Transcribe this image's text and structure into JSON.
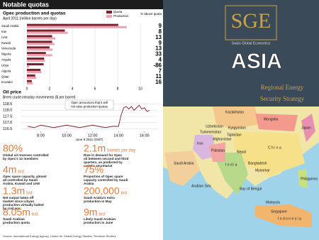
{
  "header": {
    "title": "Notable quotas"
  },
  "chart_data": [
    {
      "type": "bar",
      "orientation": "horizontal",
      "title": "Opec production and quotas",
      "subtitle": "April 2011 (million barrels per day)",
      "categories": [
        "Saudi Arabia",
        "Iran",
        "UAE",
        "Kuwait",
        "Venezuela",
        "Nigeria",
        "Angola",
        "Libya",
        "Algeria",
        "Qatar",
        "Ecuador"
      ],
      "series": [
        {
          "name": "Quota",
          "color": "#7d1f2c",
          "values": [
            8.05,
            3.34,
            2.22,
            2.22,
            1.99,
            1.67,
            1.52,
            1.47,
            1.2,
            0.73,
            0.43
          ]
        },
        {
          "name": "Production",
          "color": "#e9a3b3",
          "values": [
            8.8,
            3.6,
            2.5,
            2.42,
            2.25,
            2.22,
            1.58,
            0.2,
            1.28,
            0.81,
            0.5
          ]
        }
      ],
      "value_column": {
        "title": "% above quota",
        "values": [
          9,
          8,
          13,
          9,
          13,
          33,
          4,
          -86,
          7,
          11,
          16
        ]
      },
      "xlim": [
        0,
        10
      ],
      "xticks": [
        0,
        2,
        4,
        6,
        8,
        10
      ]
    },
    {
      "type": "line",
      "title": "Oil price",
      "subtitle": "Brent crude intraday movements ($ per barrel)",
      "x": [
        7,
        7.5,
        8,
        8.5,
        9,
        9.5,
        10,
        10.5,
        11,
        11.5,
        12,
        12.5,
        13,
        13.5,
        14,
        14.2,
        14.4,
        14.6,
        14.8,
        15,
        15.2,
        15.4,
        15.6,
        15.8,
        16,
        16.2,
        16.4
      ],
      "series": [
        {
          "name": "Brent crude",
          "color": "#7d1f2c",
          "values": [
            116.7,
            116.6,
            116.8,
            116.7,
            116.6,
            116.7,
            116.8,
            116.7,
            116.6,
            116.7,
            116.8,
            116.7,
            116.6,
            116.7,
            116.7,
            117.6,
            118.2,
            118.3,
            118.1,
            118.3,
            118.0,
            118.2,
            118.4,
            118.1,
            118.2,
            117.9,
            118.0
          ]
        }
      ],
      "xlim": [
        6.5,
        17
      ],
      "xticks": [
        {
          "value": 8,
          "label": "8:00"
        },
        {
          "value": 10,
          "label": "10:00"
        },
        {
          "value": 12,
          "label": "12:00"
        },
        {
          "value": 14,
          "label": "14:00"
        },
        {
          "value": 16,
          "label": "16:00"
        }
      ],
      "ylim": [
        116.3,
        118.7
      ],
      "yticks": [
        116.5,
        {
          "value": 117,
          "label": "117.0"
        },
        117.5,
        {
          "value": 118,
          "label": "118.0"
        },
        118.5
      ],
      "xlabel": "June 8 2011 (GMT)",
      "annotation": [
        "Opec announces that it will",
        "not raise production quotas"
      ]
    }
  ],
  "stats": [
    {
      "figure": "80%",
      "unit": "",
      "lines": [
        "Global oil reserves controlled",
        "by Opec's 12 members"
      ]
    },
    {
      "figure": "2.1m",
      "unit": "barrels per day",
      "lines": [
        "Rise in demand for Opec",
        "oil between second and third",
        "quarters, as predicted by",
        "cartel's secretariat"
      ]
    },
    {
      "figure": "4m",
      "unit": "b/d",
      "lines": [
        "Opec spare capacity, almost",
        "all controlled by Saudi",
        "Arabia, Kuwait and UAE"
      ]
    },
    {
      "figure": "75%",
      "unit": "",
      "lines": [
        "Proportion of Opec spare",
        "capacity controlled by Saudi",
        "Arabia"
      ]
    },
    {
      "figure": "1.3m",
      "unit": "b/d",
      "lines": [
        "Net output taken off",
        "market since Libyan",
        "production virtually halted",
        "by civil war"
      ]
    },
    {
      "figure": "200,000",
      "unit": "b/d",
      "lines": [
        "Saudi Arabia's extra",
        "production in May"
      ]
    },
    {
      "figure": "8.05m",
      "unit": "b/d",
      "lines": [
        "Saudi Arabian",
        "production quota"
      ]
    },
    {
      "figure": "9m",
      "unit": "b/d",
      "lines": [
        "Likely Saudi Arabian",
        "production in June"
      ]
    }
  ],
  "source": "Source: International Energy Agency, Centre for Global Energy Studies; Thomson Reuters",
  "right_panel": {
    "logo": "SGE",
    "logo_caption": "Swiss Global Economics",
    "title": "ASIA",
    "subtitle": [
      "Regional Energy",
      "Security Strategy"
    ],
    "map_labels": [
      "Kazakhstan",
      "Mongolia",
      "Uzbekistan",
      "Kyrgyzstan",
      "Turkmenistan",
      "Tajikistan",
      "Afghanistan",
      "Iran",
      "Pakistan",
      "C h i n a",
      "Nepal",
      "I n d i a",
      "Bangladesh",
      "Myanmar",
      "Japan",
      "Philippines",
      "Arabian Sea",
      "Bay of Bengal",
      "Malaysia",
      "Singapore",
      "I n d o n e s i a",
      "Saudi Arabia"
    ]
  }
}
